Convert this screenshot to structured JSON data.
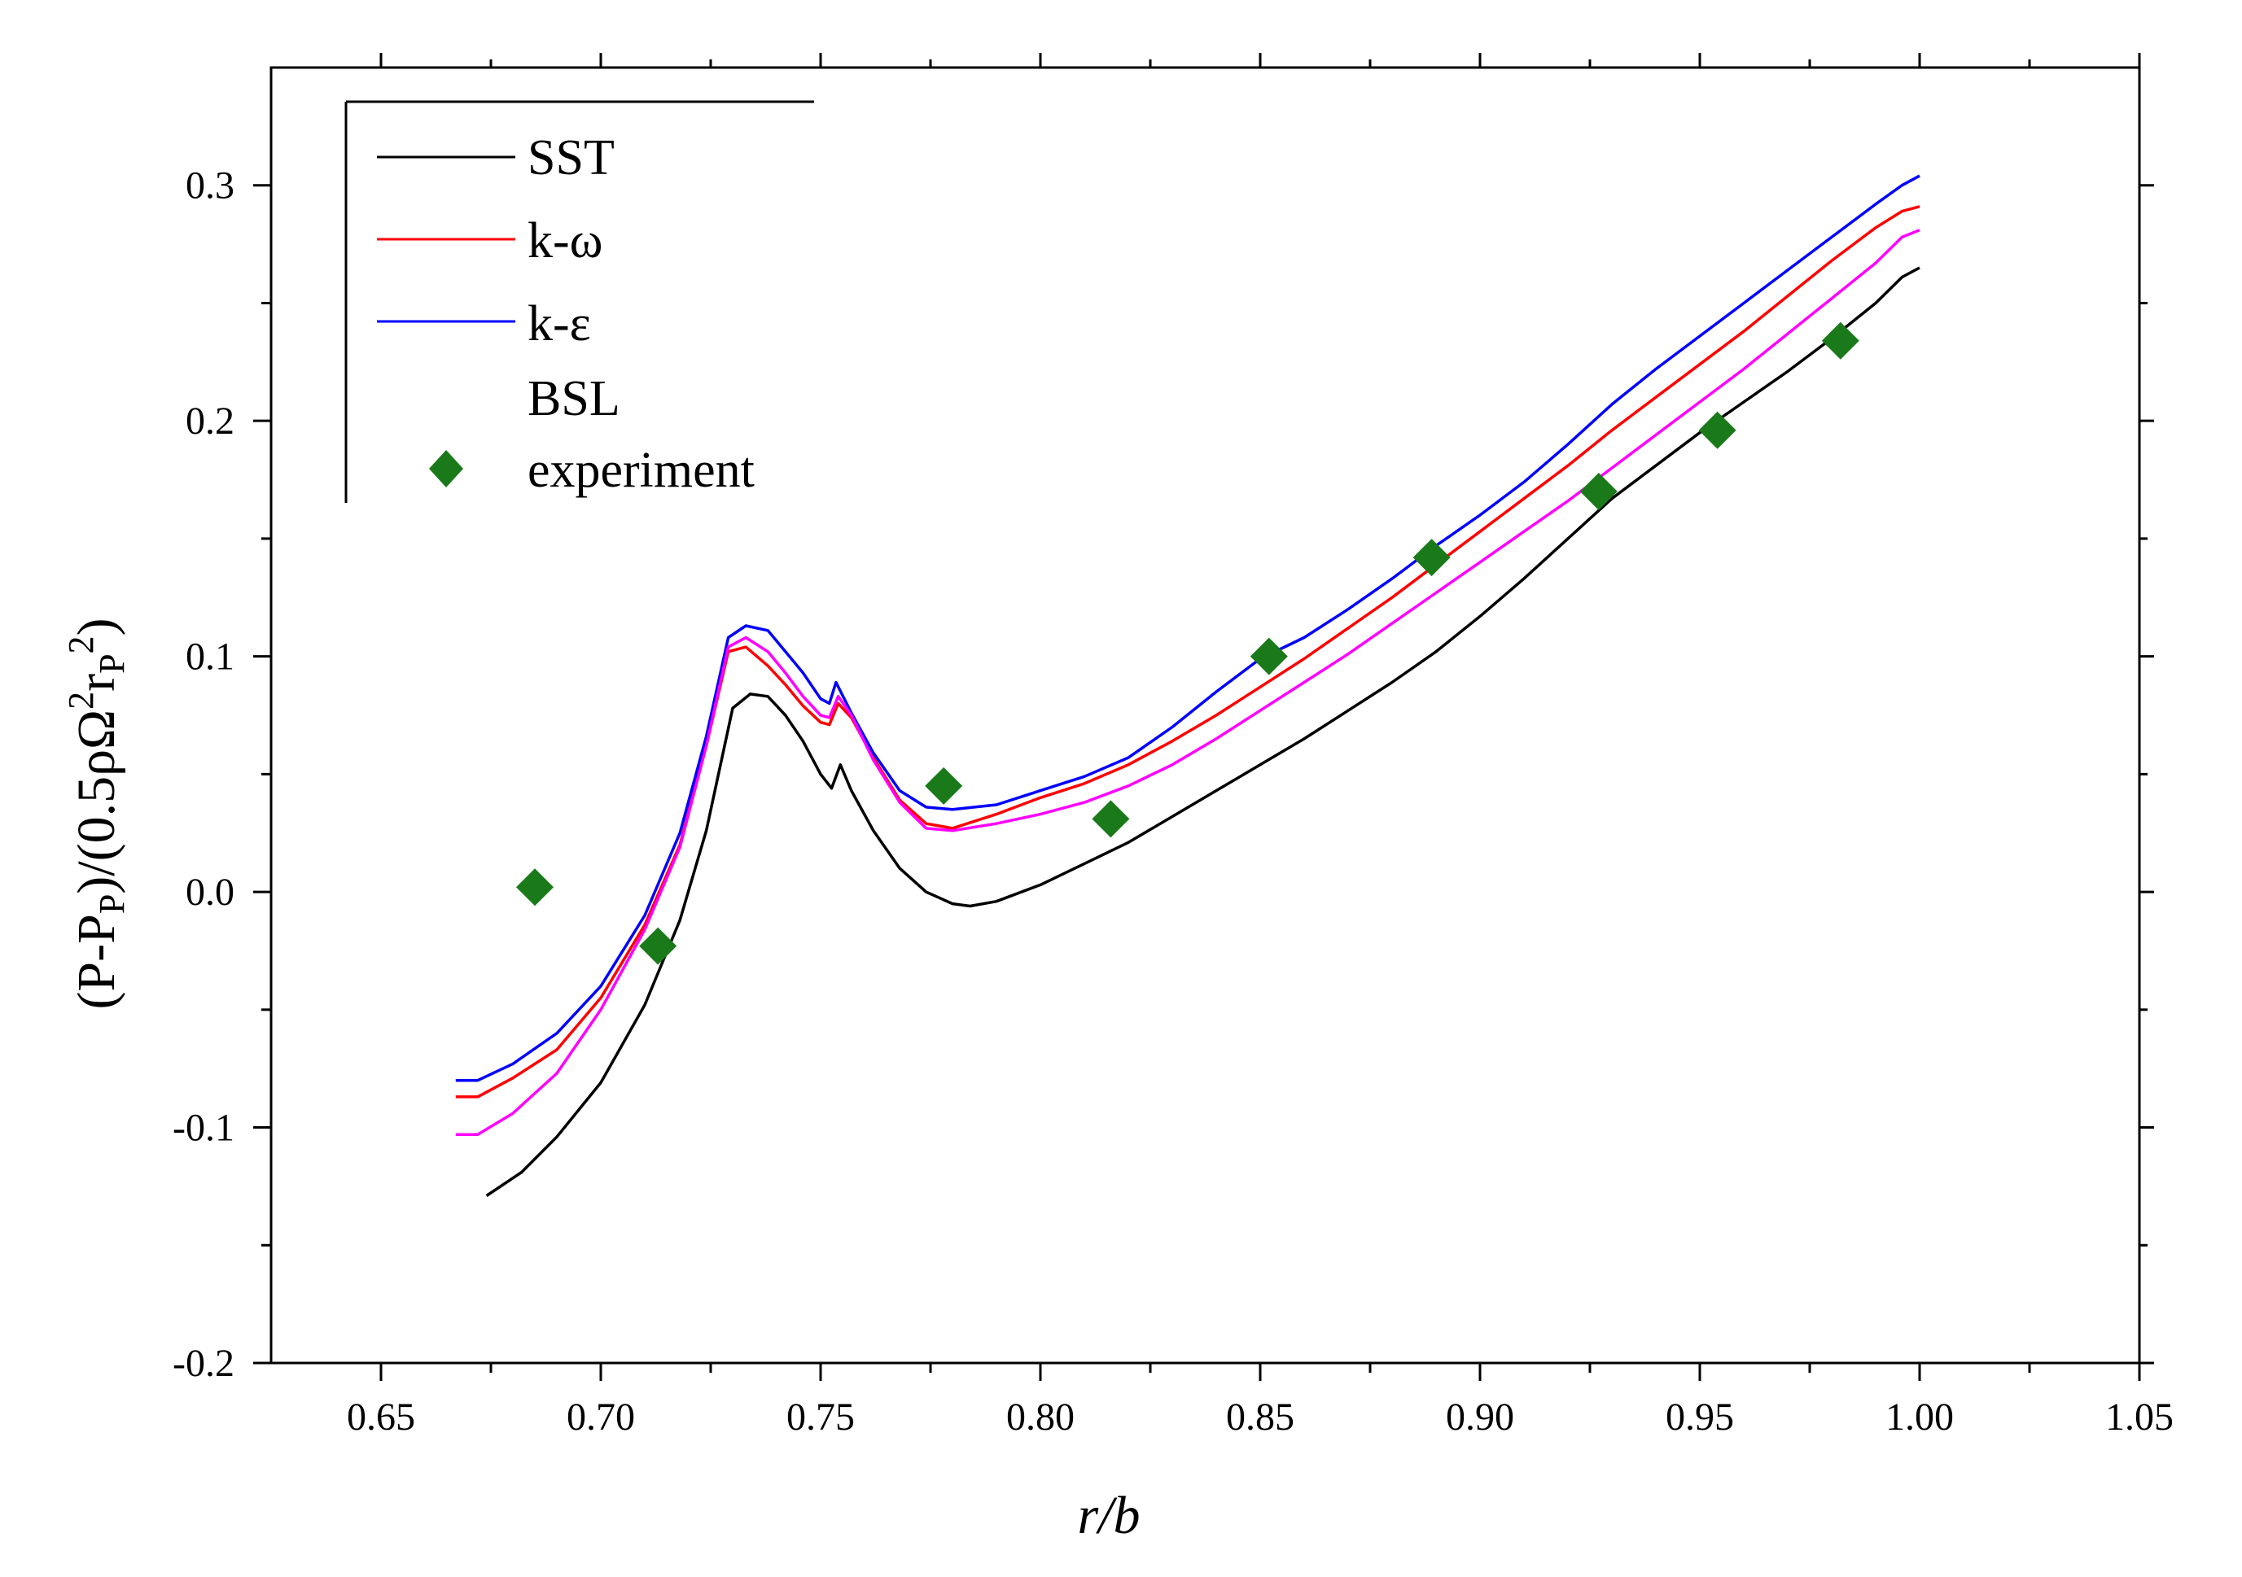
{
  "chart_data": {
    "type": "line",
    "xlabel": "r/b",
    "ylabel": "(P-P_P)/(0.5ρΩ²r_P²)",
    "xlim": [
      0.625,
      1.05
    ],
    "ylim": [
      -0.2,
      0.35
    ],
    "x_ticks": [
      "0.65",
      "0.70",
      "0.75",
      "0.80",
      "0.85",
      "0.90",
      "0.95",
      "1.00",
      "1.05"
    ],
    "y_ticks": [
      "-0.2",
      "-0.1",
      "0.0",
      "0.1",
      "0.2",
      "0.3"
    ],
    "grid": false,
    "legend_position": "top-left",
    "series": [
      {
        "name": "SST",
        "color": "#000000",
        "x": [
          0.674,
          0.682,
          0.69,
          0.7,
          0.71,
          0.718,
          0.724,
          0.73,
          0.734,
          0.738,
          0.742,
          0.746,
          0.75,
          0.7525,
          0.7545,
          0.757,
          0.762,
          0.768,
          0.774,
          0.78,
          0.784,
          0.79,
          0.8,
          0.81,
          0.82,
          0.83,
          0.84,
          0.85,
          0.86,
          0.87,
          0.88,
          0.89,
          0.9,
          0.91,
          0.92,
          0.93,
          0.94,
          0.95,
          0.96,
          0.97,
          0.98,
          0.99,
          0.996,
          1.0
        ],
        "y": [
          -0.129,
          -0.119,
          -0.104,
          -0.081,
          -0.048,
          -0.012,
          0.026,
          0.078,
          0.084,
          0.083,
          0.075,
          0.064,
          0.05,
          0.044,
          0.054,
          0.043,
          0.026,
          0.01,
          0.0,
          -0.005,
          -0.006,
          -0.004,
          0.003,
          0.012,
          0.021,
          0.032,
          0.043,
          0.054,
          0.065,
          0.077,
          0.089,
          0.102,
          0.117,
          0.133,
          0.15,
          0.167,
          0.181,
          0.195,
          0.208,
          0.221,
          0.235,
          0.25,
          0.261,
          0.265
        ]
      },
      {
        "name": "k-ω",
        "color": "#ff0000",
        "x": [
          0.667,
          0.672,
          0.68,
          0.69,
          0.7,
          0.71,
          0.718,
          0.724,
          0.729,
          0.733,
          0.738,
          0.742,
          0.746,
          0.75,
          0.752,
          0.754,
          0.757,
          0.762,
          0.768,
          0.774,
          0.78,
          0.79,
          0.8,
          0.81,
          0.82,
          0.83,
          0.84,
          0.85,
          0.86,
          0.87,
          0.88,
          0.89,
          0.9,
          0.91,
          0.92,
          0.93,
          0.94,
          0.95,
          0.96,
          0.97,
          0.98,
          0.99,
          0.996,
          1.0
        ],
        "y": [
          -0.087,
          -0.087,
          -0.079,
          -0.067,
          -0.045,
          -0.014,
          0.02,
          0.062,
          0.102,
          0.104,
          0.096,
          0.088,
          0.079,
          0.072,
          0.071,
          0.08,
          0.074,
          0.057,
          0.039,
          0.029,
          0.027,
          0.033,
          0.04,
          0.046,
          0.054,
          0.064,
          0.075,
          0.087,
          0.099,
          0.112,
          0.125,
          0.139,
          0.153,
          0.167,
          0.181,
          0.196,
          0.21,
          0.224,
          0.238,
          0.253,
          0.268,
          0.282,
          0.289,
          0.291
        ]
      },
      {
        "name": "k-ε",
        "color": "#0000ff",
        "x": [
          0.667,
          0.672,
          0.68,
          0.69,
          0.7,
          0.71,
          0.718,
          0.724,
          0.729,
          0.733,
          0.738,
          0.742,
          0.746,
          0.75,
          0.752,
          0.7535,
          0.757,
          0.762,
          0.768,
          0.774,
          0.78,
          0.79,
          0.8,
          0.81,
          0.82,
          0.83,
          0.84,
          0.85,
          0.86,
          0.87,
          0.88,
          0.89,
          0.9,
          0.91,
          0.92,
          0.93,
          0.94,
          0.95,
          0.96,
          0.97,
          0.98,
          0.99,
          0.996,
          1.0
        ],
        "y": [
          -0.08,
          -0.08,
          -0.073,
          -0.06,
          -0.04,
          -0.01,
          0.025,
          0.066,
          0.108,
          0.113,
          0.111,
          0.102,
          0.093,
          0.082,
          0.08,
          0.089,
          0.076,
          0.059,
          0.043,
          0.036,
          0.035,
          0.037,
          0.043,
          0.049,
          0.057,
          0.07,
          0.085,
          0.099,
          0.108,
          0.12,
          0.133,
          0.147,
          0.16,
          0.174,
          0.19,
          0.207,
          0.222,
          0.236,
          0.25,
          0.264,
          0.278,
          0.292,
          0.3,
          0.304
        ]
      },
      {
        "name": "BSL",
        "color": "#ff00ff",
        "x": [
          0.667,
          0.672,
          0.68,
          0.69,
          0.7,
          0.71,
          0.718,
          0.724,
          0.729,
          0.733,
          0.738,
          0.742,
          0.746,
          0.75,
          0.752,
          0.754,
          0.757,
          0.762,
          0.768,
          0.774,
          0.78,
          0.79,
          0.8,
          0.81,
          0.82,
          0.83,
          0.84,
          0.85,
          0.86,
          0.87,
          0.88,
          0.89,
          0.9,
          0.91,
          0.92,
          0.93,
          0.94,
          0.95,
          0.96,
          0.97,
          0.98,
          0.99,
          0.996,
          1.0
        ],
        "y": [
          -0.103,
          -0.103,
          -0.094,
          -0.077,
          -0.05,
          -0.016,
          0.019,
          0.062,
          0.104,
          0.108,
          0.102,
          0.093,
          0.083,
          0.075,
          0.074,
          0.083,
          0.075,
          0.056,
          0.038,
          0.027,
          0.026,
          0.029,
          0.033,
          0.038,
          0.045,
          0.054,
          0.065,
          0.077,
          0.089,
          0.101,
          0.114,
          0.127,
          0.14,
          0.153,
          0.166,
          0.18,
          0.194,
          0.208,
          0.222,
          0.237,
          0.252,
          0.267,
          0.278,
          0.281
        ]
      }
    ],
    "scatter": {
      "name": "experiment",
      "color": "#1a7a1a",
      "marker": "diamond",
      "x": [
        0.685,
        0.713,
        0.778,
        0.816,
        0.852,
        0.889,
        0.927,
        0.954,
        0.982
      ],
      "y": [
        0.002,
        -0.023,
        0.045,
        0.031,
        0.1,
        0.142,
        0.17,
        0.196,
        0.234
      ]
    }
  }
}
